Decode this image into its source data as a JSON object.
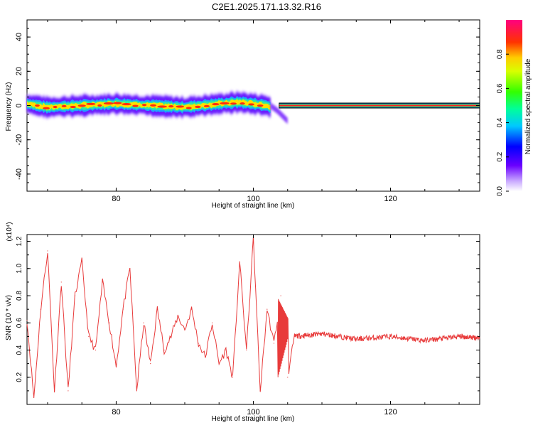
{
  "title": "C2E1.2025.171.13.32.R16",
  "chart_data": [
    {
      "type": "heatmap",
      "title": "C2E1.2025.171.13.32.R16",
      "xlabel": "Height of straight line (km)",
      "ylabel": "Frequency (Hz)",
      "xlim": [
        67,
        133
      ],
      "ylim": [
        -50,
        50
      ],
      "xticks": [
        80,
        100,
        120
      ],
      "yticks": [
        -40,
        -20,
        0,
        20,
        40
      ],
      "grid": false,
      "colorbar": {
        "label": "Normalized spectral amplitude",
        "range": [
          0,
          1
        ],
        "ticks": [
          "0.0",
          "0.2",
          "0.4",
          "0.6",
          "0.8"
        ]
      },
      "series": [
        {
          "description_of_signal": "noisy band",
          "x": [
            67,
            70,
            75,
            80,
            85,
            90,
            95,
            98,
            100,
            102,
            104,
            105
          ],
          "y_center": [
            1,
            -1,
            0,
            1,
            0,
            -1,
            1,
            2,
            1,
            0,
            -5,
            -9
          ]
        },
        {
          "description_of_signal": "steady line",
          "x": [
            105,
            133
          ],
          "y_center": [
            0,
            0
          ]
        }
      ]
    },
    {
      "type": "line",
      "xlabel": "Height of straight line (km)",
      "ylabel": "SNR (10 * v/v)",
      "ylabel_multiplier": "(x10⁴)",
      "xlim": [
        67,
        133
      ],
      "ylim": [
        0,
        1.25
      ],
      "xticks": [
        80,
        100,
        120
      ],
      "yticks": [
        "0.2",
        "0.4",
        "0.6",
        "0.8",
        "1.0",
        "1.2"
      ],
      "grid": false,
      "series": [
        {
          "x": [
            67,
            68,
            69,
            70,
            71,
            72,
            73,
            74,
            75,
            76,
            77,
            78,
            79,
            80,
            81,
            82,
            83,
            84,
            85,
            86,
            87,
            88,
            89,
            90,
            91,
            92,
            93,
            94,
            95,
            96,
            97,
            98,
            99,
            100,
            101,
            102,
            103,
            104,
            105,
            106,
            110,
            115,
            120,
            125,
            130,
            133
          ],
          "y": [
            0.62,
            0.05,
            0.7,
            1.13,
            0.1,
            0.9,
            0.1,
            0.8,
            1.05,
            0.5,
            0.4,
            0.9,
            0.6,
            0.28,
            0.7,
            1.0,
            0.1,
            0.6,
            0.3,
            0.7,
            0.4,
            0.5,
            0.65,
            0.55,
            0.7,
            0.45,
            0.35,
            0.6,
            0.3,
            0.4,
            0.2,
            1.05,
            0.4,
            1.22,
            0.1,
            0.7,
            0.45,
            0.8,
            0.2,
            0.5,
            0.52,
            0.48,
            0.5,
            0.47,
            0.5,
            0.49
          ],
          "color": "#e83a3a"
        }
      ]
    }
  ]
}
